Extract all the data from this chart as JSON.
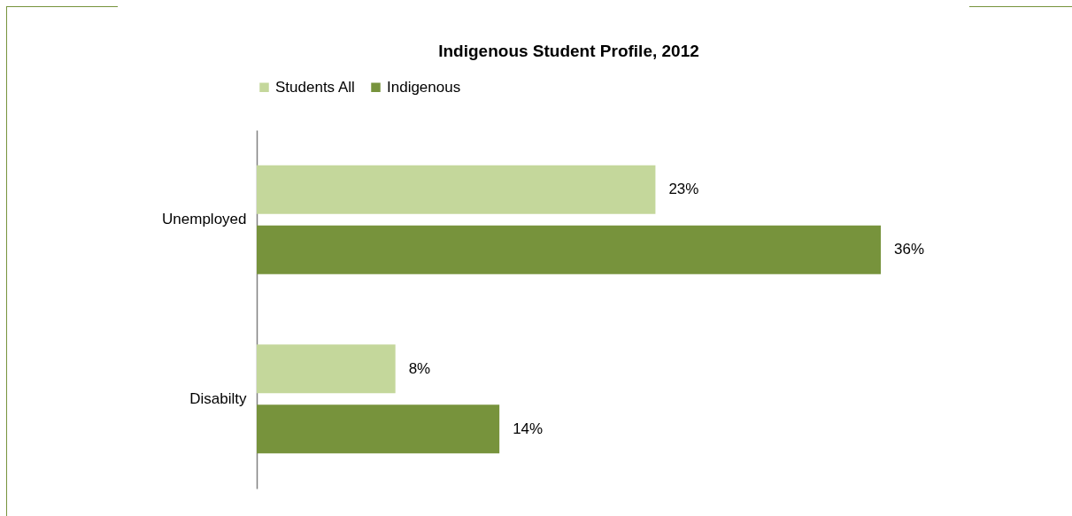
{
  "chart_data": {
    "type": "bar",
    "orientation": "horizontal",
    "title": "Indigenous Student Profile, 2012",
    "categories": [
      "Unemployed",
      "Disabilty"
    ],
    "legend": "top",
    "grid": false,
    "series": [
      {
        "name": "Students All",
        "color": "#c4d79b",
        "values": [
          23,
          8
        ],
        "value_labels": [
          "23%",
          "8%"
        ]
      },
      {
        "name": "Indigenous",
        "color": "#77933c",
        "values": [
          36,
          14
        ],
        "value_labels": [
          "36%",
          "14%"
        ]
      }
    ]
  }
}
